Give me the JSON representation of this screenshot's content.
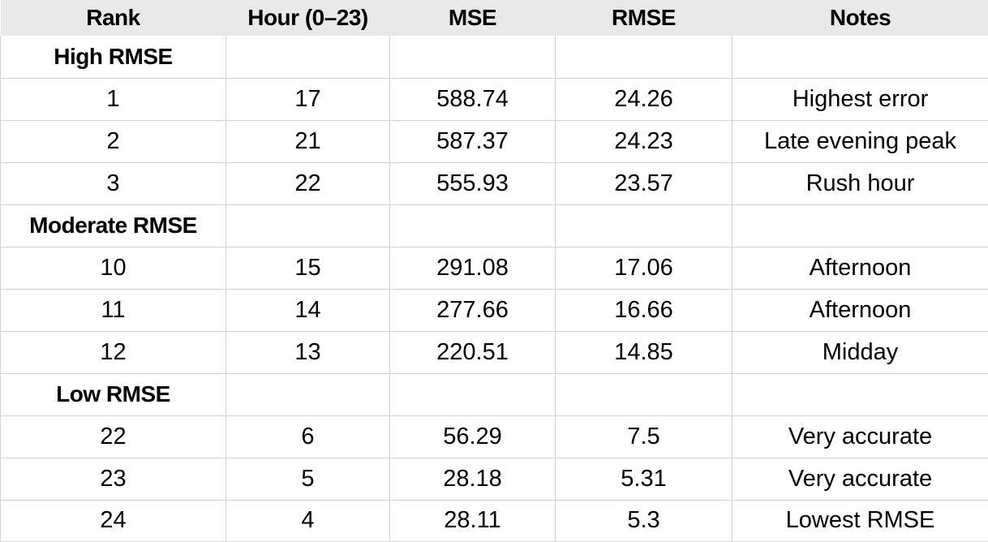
{
  "table": {
    "headers": [
      "Rank",
      "Hour (0–23)",
      "MSE",
      "RMSE",
      "Notes"
    ],
    "groups": [
      {
        "label": "High RMSE",
        "rows": [
          [
            "1",
            "17",
            "588.74",
            "24.26",
            "Highest error"
          ],
          [
            "2",
            "21",
            "587.37",
            "24.23",
            "Late evening peak"
          ],
          [
            "3",
            "22",
            "555.93",
            "23.57",
            "Rush hour"
          ]
        ]
      },
      {
        "label": "Moderate RMSE",
        "rows": [
          [
            "10",
            "15",
            "291.08",
            "17.06",
            "Afternoon"
          ],
          [
            "11",
            "14",
            "277.66",
            "16.66",
            "Afternoon"
          ],
          [
            "12",
            "13",
            "220.51",
            "14.85",
            "Midday"
          ]
        ]
      },
      {
        "label": "Low RMSE",
        "rows": [
          [
            "22",
            "6",
            "56.29",
            "7.5",
            "Very accurate"
          ],
          [
            "23",
            "5",
            "28.18",
            "5.31",
            "Very accurate"
          ],
          [
            "24",
            "4",
            "28.11",
            "5.3",
            "Lowest RMSE"
          ]
        ]
      }
    ]
  }
}
